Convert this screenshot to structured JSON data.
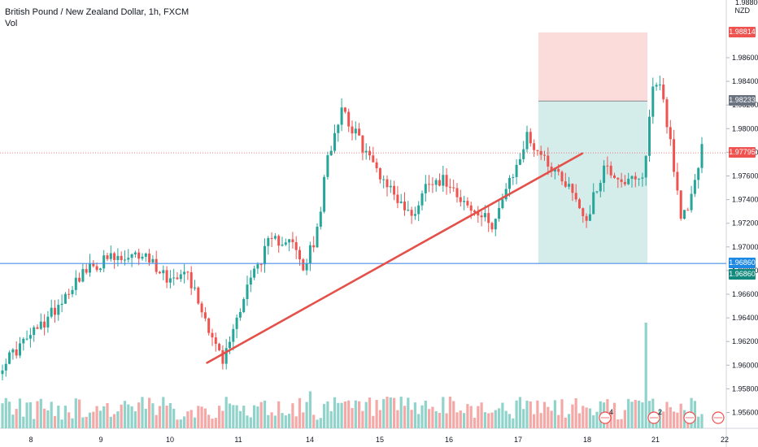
{
  "header": {
    "title": "British Pound / New Zealand Dollar, 1h, FXCM",
    "vol_label": "Vol"
  },
  "axis": {
    "unit": "NZD",
    "top_partial": "1.98800"
  },
  "price_labels": {
    "stop": "1.98814",
    "entry": "1.98233",
    "last": "1.97795",
    "target_a": "1.96860",
    "target_b": "1.96860"
  },
  "colors": {
    "up": "#26a69a",
    "down": "#ef5350",
    "up_vol": "#8fd3cb",
    "down_vol": "#f4a9a7",
    "stop_zone": "#fcd5d5",
    "target_zone": "#d2ecea",
    "trendline": "#e4504a",
    "support": "#4a8fe7",
    "last_price": "#ef5350",
    "entry_label": "#6b7280",
    "support_label": "#1e88e5",
    "target_label": "#138a7d"
  },
  "chart_data": {
    "type": "candlestick",
    "symbol": "GBPNZD",
    "timeframe": "1h",
    "xlabel": "",
    "ylabel": "",
    "x_ticks": [
      "8",
      "9",
      "10",
      "11",
      "14",
      "15",
      "16",
      "17",
      "18",
      "21",
      "22"
    ],
    "y_ticks": [
      1.956,
      1.958,
      1.96,
      1.962,
      1.964,
      1.966,
      1.968,
      1.97,
      1.972,
      1.974,
      1.976,
      1.978,
      1.98,
      1.982,
      1.984,
      1.986
    ],
    "ylim": [
      1.9548,
      1.9898
    ],
    "grid": false,
    "key_prices": [
      [
        0,
        1.9601,
        "start"
      ],
      [
        8,
        1.9625,
        "rise"
      ],
      [
        12,
        1.9636,
        "rise"
      ],
      [
        22,
        1.9676,
        "rise"
      ],
      [
        30,
        1.969,
        "plateau"
      ],
      [
        36,
        1.9688,
        "plateau"
      ],
      [
        40,
        1.9695,
        "peak"
      ],
      [
        48,
        1.9672,
        "pullback"
      ],
      [
        52,
        1.9684,
        "recover"
      ],
      [
        58,
        1.964,
        "drop"
      ],
      [
        63,
        1.9602,
        "low"
      ],
      [
        70,
        1.9668,
        "rise"
      ],
      [
        76,
        1.9702,
        "rise"
      ],
      [
        82,
        1.9709,
        "rise"
      ],
      [
        86,
        1.968,
        "dip"
      ],
      [
        90,
        1.9712,
        "rise"
      ],
      [
        93,
        1.9775,
        "rally"
      ],
      [
        97,
        1.982,
        "spike"
      ],
      [
        100,
        1.98,
        "high"
      ],
      [
        106,
        1.977,
        "fade"
      ],
      [
        112,
        1.9745,
        "fall"
      ],
      [
        117,
        1.9725,
        "low"
      ],
      [
        122,
        1.9758,
        "bounce"
      ],
      [
        128,
        1.9755,
        "range"
      ],
      [
        134,
        1.973,
        "range"
      ],
      [
        140,
        1.972,
        "low"
      ],
      [
        146,
        1.976,
        "range"
      ],
      [
        150,
        1.9793,
        "rally"
      ],
      [
        155,
        1.9775,
        "fade"
      ],
      [
        162,
        1.9752,
        "fall"
      ],
      [
        167,
        1.9723,
        "low"
      ],
      [
        172,
        1.9768,
        "rise"
      ],
      [
        178,
        1.9755,
        "range"
      ],
      [
        183,
        1.9755,
        "range"
      ],
      [
        186,
        1.9835,
        "spike"
      ],
      [
        188,
        1.984,
        "high"
      ],
      [
        191,
        1.979,
        "drop"
      ],
      [
        194,
        1.972,
        "low"
      ],
      [
        197,
        1.9742,
        "bounce"
      ],
      [
        200,
        1.9787,
        "last"
      ]
    ],
    "volume_spikes": [
      [
        88,
        0.35
      ],
      [
        184,
        1.0
      ],
      [
        191,
        0.2
      ]
    ],
    "trendline": {
      "from": [
        72,
        1.9602
      ],
      "to": [
        206,
        1.9779
      ]
    },
    "support_level": 1.9686,
    "position": {
      "type": "short",
      "entry": 1.98233,
      "stop": 1.98814,
      "target": 1.9686
    },
    "last_price": 1.97795
  }
}
